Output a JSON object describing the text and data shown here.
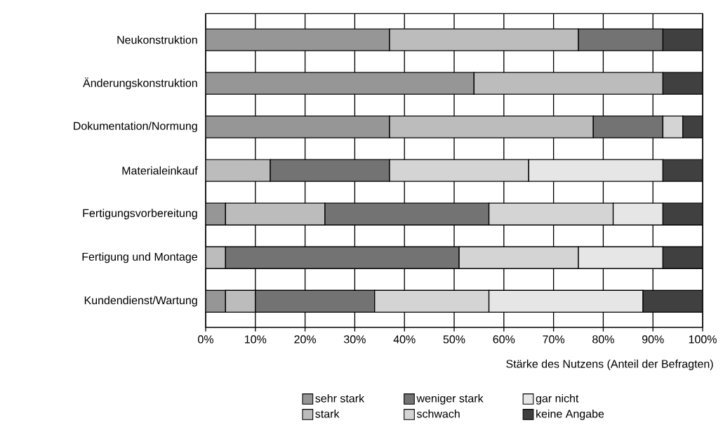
{
  "chart_data": {
    "type": "bar",
    "orientation": "horizontal",
    "stacked": true,
    "categories": [
      "Neukonstruktion",
      "Änderungskonstruktion",
      "Dokumentation/Normung",
      "Materialeinkauf",
      "Fertigungsvorbereitung",
      "Fertigung und Montage",
      "Kundendienst/Wartung"
    ],
    "xlabel": "Stärke des Nutzens (Anteil der Befragten)",
    "xlim": [
      0,
      100
    ],
    "xticks": [
      {
        "value": 0,
        "label": "0%"
      },
      {
        "value": 10,
        "label": "10%"
      },
      {
        "value": 20,
        "label": "20%"
      },
      {
        "value": 30,
        "label": "30%"
      },
      {
        "value": 40,
        "label": "40%"
      },
      {
        "value": 50,
        "label": "50%"
      },
      {
        "value": 60,
        "label": "60%"
      },
      {
        "value": 70,
        "label": "70%"
      },
      {
        "value": 80,
        "label": "80%"
      },
      {
        "value": 90,
        "label": "90%"
      },
      {
        "value": 100,
        "label": "100%"
      }
    ],
    "grid": "x",
    "legend": "bottom",
    "series": [
      {
        "name": "sehr stark",
        "color": "#969696",
        "values": [
          37,
          54,
          37,
          null,
          4,
          null,
          4
        ]
      },
      {
        "name": "stark",
        "color": "#bcbcbc",
        "values": [
          38,
          38,
          41,
          13,
          20,
          4,
          6
        ]
      },
      {
        "name": "weniger stark",
        "color": "#737373",
        "values": [
          17,
          null,
          14,
          24,
          33,
          47,
          24
        ]
      },
      {
        "name": "schwach",
        "color": "#d4d4d4",
        "values": [
          null,
          null,
          4,
          28,
          25,
          24,
          23
        ]
      },
      {
        "name": "gar nicht",
        "color": "#e6e6e6",
        "values": [
          null,
          null,
          null,
          27,
          10,
          17,
          31
        ]
      },
      {
        "name": "keine Angabe",
        "color": "#404040",
        "values": [
          8,
          8,
          4,
          8,
          8,
          8,
          12
        ]
      }
    ]
  }
}
